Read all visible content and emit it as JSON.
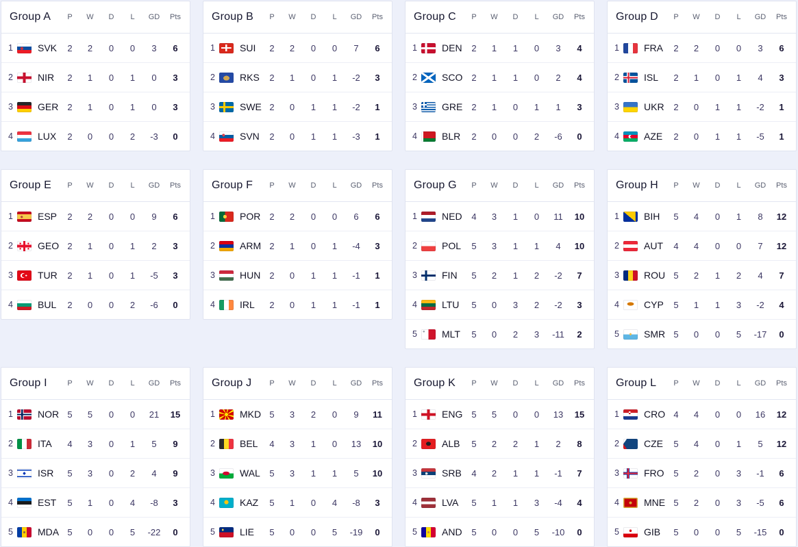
{
  "page_background": "#edf0fa",
  "columns": [
    "P",
    "W",
    "D",
    "L",
    "GD",
    "Pts"
  ],
  "groups": [
    {
      "title": "Group A",
      "rows": [
        {
          "pos": "1",
          "code": "SVK",
          "flag": "svk-flag-icon",
          "p": "2",
          "w": "2",
          "d": "0",
          "l": "0",
          "gd": "3",
          "pts": "6"
        },
        {
          "pos": "2",
          "code": "NIR",
          "flag": "nir-flag-icon",
          "p": "2",
          "w": "1",
          "d": "0",
          "l": "1",
          "gd": "0",
          "pts": "3"
        },
        {
          "pos": "3",
          "code": "GER",
          "flag": "ger-flag-icon",
          "p": "2",
          "w": "1",
          "d": "0",
          "l": "1",
          "gd": "0",
          "pts": "3"
        },
        {
          "pos": "4",
          "code": "LUX",
          "flag": "lux-flag-icon",
          "p": "2",
          "w": "0",
          "d": "0",
          "l": "2",
          "gd": "-3",
          "pts": "0"
        }
      ]
    },
    {
      "title": "Group B",
      "rows": [
        {
          "pos": "1",
          "code": "SUI",
          "flag": "sui-flag-icon",
          "p": "2",
          "w": "2",
          "d": "0",
          "l": "0",
          "gd": "7",
          "pts": "6"
        },
        {
          "pos": "2",
          "code": "RKS",
          "flag": "rks-flag-icon",
          "p": "2",
          "w": "1",
          "d": "0",
          "l": "1",
          "gd": "-2",
          "pts": "3"
        },
        {
          "pos": "3",
          "code": "SWE",
          "flag": "swe-flag-icon",
          "p": "2",
          "w": "0",
          "d": "1",
          "l": "1",
          "gd": "-2",
          "pts": "1"
        },
        {
          "pos": "4",
          "code": "SVN",
          "flag": "svn-flag-icon",
          "p": "2",
          "w": "0",
          "d": "1",
          "l": "1",
          "gd": "-3",
          "pts": "1"
        }
      ]
    },
    {
      "title": "Group C",
      "rows": [
        {
          "pos": "1",
          "code": "DEN",
          "flag": "den-flag-icon",
          "p": "2",
          "w": "1",
          "d": "1",
          "l": "0",
          "gd": "3",
          "pts": "4"
        },
        {
          "pos": "2",
          "code": "SCO",
          "flag": "sco-flag-icon",
          "p": "2",
          "w": "1",
          "d": "1",
          "l": "0",
          "gd": "2",
          "pts": "4"
        },
        {
          "pos": "3",
          "code": "GRE",
          "flag": "gre-flag-icon",
          "p": "2",
          "w": "1",
          "d": "0",
          "l": "1",
          "gd": "1",
          "pts": "3"
        },
        {
          "pos": "4",
          "code": "BLR",
          "flag": "blr-flag-icon",
          "p": "2",
          "w": "0",
          "d": "0",
          "l": "2",
          "gd": "-6",
          "pts": "0"
        }
      ]
    },
    {
      "title": "Group D",
      "rows": [
        {
          "pos": "1",
          "code": "FRA",
          "flag": "fra-flag-icon",
          "p": "2",
          "w": "2",
          "d": "0",
          "l": "0",
          "gd": "3",
          "pts": "6"
        },
        {
          "pos": "2",
          "code": "ISL",
          "flag": "isl-flag-icon",
          "p": "2",
          "w": "1",
          "d": "0",
          "l": "1",
          "gd": "4",
          "pts": "3"
        },
        {
          "pos": "3",
          "code": "UKR",
          "flag": "ukr-flag-icon",
          "p": "2",
          "w": "0",
          "d": "1",
          "l": "1",
          "gd": "-2",
          "pts": "1"
        },
        {
          "pos": "4",
          "code": "AZE",
          "flag": "aze-flag-icon",
          "p": "2",
          "w": "0",
          "d": "1",
          "l": "1",
          "gd": "-5",
          "pts": "1"
        }
      ]
    },
    {
      "title": "Group E",
      "rows": [
        {
          "pos": "1",
          "code": "ESP",
          "flag": "esp-flag-icon",
          "p": "2",
          "w": "2",
          "d": "0",
          "l": "0",
          "gd": "9",
          "pts": "6"
        },
        {
          "pos": "2",
          "code": "GEO",
          "flag": "geo-flag-icon",
          "p": "2",
          "w": "1",
          "d": "0",
          "l": "1",
          "gd": "2",
          "pts": "3"
        },
        {
          "pos": "3",
          "code": "TUR",
          "flag": "tur-flag-icon",
          "p": "2",
          "w": "1",
          "d": "0",
          "l": "1",
          "gd": "-5",
          "pts": "3"
        },
        {
          "pos": "4",
          "code": "BUL",
          "flag": "bul-flag-icon",
          "p": "2",
          "w": "0",
          "d": "0",
          "l": "2",
          "gd": "-6",
          "pts": "0"
        }
      ]
    },
    {
      "title": "Group F",
      "rows": [
        {
          "pos": "1",
          "code": "POR",
          "flag": "por-flag-icon",
          "p": "2",
          "w": "2",
          "d": "0",
          "l": "0",
          "gd": "6",
          "pts": "6"
        },
        {
          "pos": "2",
          "code": "ARM",
          "flag": "arm-flag-icon",
          "p": "2",
          "w": "1",
          "d": "0",
          "l": "1",
          "gd": "-4",
          "pts": "3"
        },
        {
          "pos": "3",
          "code": "HUN",
          "flag": "hun-flag-icon",
          "p": "2",
          "w": "0",
          "d": "1",
          "l": "1",
          "gd": "-1",
          "pts": "1"
        },
        {
          "pos": "4",
          "code": "IRL",
          "flag": "irl-flag-icon",
          "p": "2",
          "w": "0",
          "d": "1",
          "l": "1",
          "gd": "-1",
          "pts": "1"
        }
      ]
    },
    {
      "title": "Group G",
      "rows": [
        {
          "pos": "1",
          "code": "NED",
          "flag": "ned-flag-icon",
          "p": "4",
          "w": "3",
          "d": "1",
          "l": "0",
          "gd": "11",
          "pts": "10"
        },
        {
          "pos": "2",
          "code": "POL",
          "flag": "pol-flag-icon",
          "p": "5",
          "w": "3",
          "d": "1",
          "l": "1",
          "gd": "4",
          "pts": "10"
        },
        {
          "pos": "3",
          "code": "FIN",
          "flag": "fin-flag-icon",
          "p": "5",
          "w": "2",
          "d": "1",
          "l": "2",
          "gd": "-2",
          "pts": "7"
        },
        {
          "pos": "4",
          "code": "LTU",
          "flag": "ltu-flag-icon",
          "p": "5",
          "w": "0",
          "d": "3",
          "l": "2",
          "gd": "-2",
          "pts": "3"
        },
        {
          "pos": "5",
          "code": "MLT",
          "flag": "mlt-flag-icon",
          "p": "5",
          "w": "0",
          "d": "2",
          "l": "3",
          "gd": "-11",
          "pts": "2"
        }
      ]
    },
    {
      "title": "Group H",
      "rows": [
        {
          "pos": "1",
          "code": "BIH",
          "flag": "bih-flag-icon",
          "p": "5",
          "w": "4",
          "d": "0",
          "l": "1",
          "gd": "8",
          "pts": "12"
        },
        {
          "pos": "2",
          "code": "AUT",
          "flag": "aut-flag-icon",
          "p": "4",
          "w": "4",
          "d": "0",
          "l": "0",
          "gd": "7",
          "pts": "12"
        },
        {
          "pos": "3",
          "code": "ROU",
          "flag": "rou-flag-icon",
          "p": "5",
          "w": "2",
          "d": "1",
          "l": "2",
          "gd": "4",
          "pts": "7"
        },
        {
          "pos": "4",
          "code": "CYP",
          "flag": "cyp-flag-icon",
          "p": "5",
          "w": "1",
          "d": "1",
          "l": "3",
          "gd": "-2",
          "pts": "4"
        },
        {
          "pos": "5",
          "code": "SMR",
          "flag": "smr-flag-icon",
          "p": "5",
          "w": "0",
          "d": "0",
          "l": "5",
          "gd": "-17",
          "pts": "0"
        }
      ]
    },
    {
      "title": "Group I",
      "rows": [
        {
          "pos": "1",
          "code": "NOR",
          "flag": "nor-flag-icon",
          "p": "5",
          "w": "5",
          "d": "0",
          "l": "0",
          "gd": "21",
          "pts": "15"
        },
        {
          "pos": "2",
          "code": "ITA",
          "flag": "ita-flag-icon",
          "p": "4",
          "w": "3",
          "d": "0",
          "l": "1",
          "gd": "5",
          "pts": "9"
        },
        {
          "pos": "3",
          "code": "ISR",
          "flag": "isr-flag-icon",
          "p": "5",
          "w": "3",
          "d": "0",
          "l": "2",
          "gd": "4",
          "pts": "9"
        },
        {
          "pos": "4",
          "code": "EST",
          "flag": "est-flag-icon",
          "p": "5",
          "w": "1",
          "d": "0",
          "l": "4",
          "gd": "-8",
          "pts": "3"
        },
        {
          "pos": "5",
          "code": "MDA",
          "flag": "mda-flag-icon",
          "p": "5",
          "w": "0",
          "d": "0",
          "l": "5",
          "gd": "-22",
          "pts": "0"
        }
      ]
    },
    {
      "title": "Group J",
      "rows": [
        {
          "pos": "1",
          "code": "MKD",
          "flag": "mkd-flag-icon",
          "p": "5",
          "w": "3",
          "d": "2",
          "l": "0",
          "gd": "9",
          "pts": "11"
        },
        {
          "pos": "2",
          "code": "BEL",
          "flag": "bel-flag-icon",
          "p": "4",
          "w": "3",
          "d": "1",
          "l": "0",
          "gd": "13",
          "pts": "10"
        },
        {
          "pos": "3",
          "code": "WAL",
          "flag": "wal-flag-icon",
          "p": "5",
          "w": "3",
          "d": "1",
          "l": "1",
          "gd": "5",
          "pts": "10"
        },
        {
          "pos": "4",
          "code": "KAZ",
          "flag": "kaz-flag-icon",
          "p": "5",
          "w": "1",
          "d": "0",
          "l": "4",
          "gd": "-8",
          "pts": "3"
        },
        {
          "pos": "5",
          "code": "LIE",
          "flag": "lie-flag-icon",
          "p": "5",
          "w": "0",
          "d": "0",
          "l": "5",
          "gd": "-19",
          "pts": "0"
        }
      ]
    },
    {
      "title": "Group K",
      "rows": [
        {
          "pos": "1",
          "code": "ENG",
          "flag": "eng-flag-icon",
          "p": "5",
          "w": "5",
          "d": "0",
          "l": "0",
          "gd": "13",
          "pts": "15"
        },
        {
          "pos": "2",
          "code": "ALB",
          "flag": "alb-flag-icon",
          "p": "5",
          "w": "2",
          "d": "2",
          "l": "1",
          "gd": "2",
          "pts": "8"
        },
        {
          "pos": "3",
          "code": "SRB",
          "flag": "srb-flag-icon",
          "p": "4",
          "w": "2",
          "d": "1",
          "l": "1",
          "gd": "-1",
          "pts": "7"
        },
        {
          "pos": "4",
          "code": "LVA",
          "flag": "lva-flag-icon",
          "p": "5",
          "w": "1",
          "d": "1",
          "l": "3",
          "gd": "-4",
          "pts": "4"
        },
        {
          "pos": "5",
          "code": "AND",
          "flag": "and-flag-icon",
          "p": "5",
          "w": "0",
          "d": "0",
          "l": "5",
          "gd": "-10",
          "pts": "0"
        }
      ]
    },
    {
      "title": "Group L",
      "rows": [
        {
          "pos": "1",
          "code": "CRO",
          "flag": "cro-flag-icon",
          "p": "4",
          "w": "4",
          "d": "0",
          "l": "0",
          "gd": "16",
          "pts": "12"
        },
        {
          "pos": "2",
          "code": "CZE",
          "flag": "cze-flag-icon",
          "p": "5",
          "w": "4",
          "d": "0",
          "l": "1",
          "gd": "5",
          "pts": "12"
        },
        {
          "pos": "3",
          "code": "FRO",
          "flag": "fro-flag-icon",
          "p": "5",
          "w": "2",
          "d": "0",
          "l": "3",
          "gd": "-1",
          "pts": "6"
        },
        {
          "pos": "4",
          "code": "MNE",
          "flag": "mne-flag-icon",
          "p": "5",
          "w": "2",
          "d": "0",
          "l": "3",
          "gd": "-5",
          "pts": "6"
        },
        {
          "pos": "5",
          "code": "GIB",
          "flag": "gib-flag-icon",
          "p": "5",
          "w": "0",
          "d": "0",
          "l": "5",
          "gd": "-15",
          "pts": "0"
        }
      ]
    }
  ]
}
